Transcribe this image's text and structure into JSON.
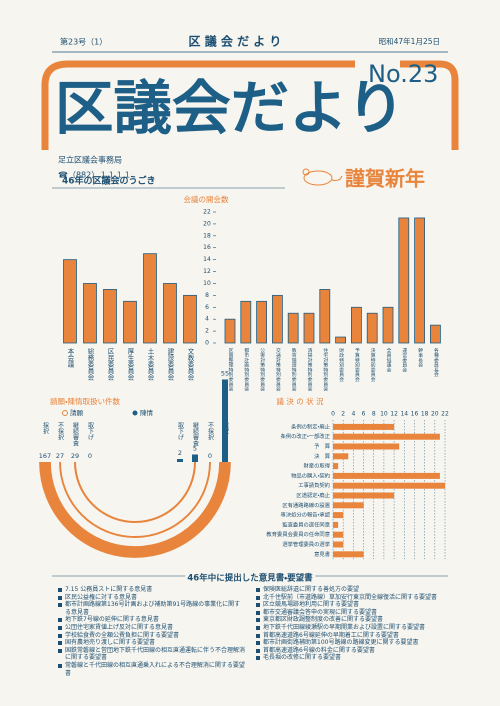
{
  "header": {
    "issue": "第23号（1）",
    "name": "区 議 会 だ よ り",
    "date": "昭和47年1月25日"
  },
  "masthead": {
    "title": "区議会だより",
    "number": "No.23",
    "publisher": "足立区議会事務局",
    "phone": "☎（882）１１１１",
    "greeting": "謹賀新年"
  },
  "section_title": "46年の区議会のうごき",
  "chart_data": [
    {
      "type": "bar",
      "title": "会議の開会数",
      "categories": [
        "本会議",
        "総務委員会",
        "区民委員会",
        "厚生委員会",
        "土木委員会",
        "建設委員会",
        "文教委員会",
        "区画整理特別委員会",
        "都市計画特別委員会",
        "公害対策特別委員会",
        "交通対策特別委員会",
        "教育施設特別委員会",
        "清掃対策特別委員会",
        "住宅対策特別委員会",
        "財政特別委員会",
        "予算特別委員会",
        "決算特別委員会",
        "全員協議会",
        "運営委員会",
        "幹事長会",
        "各種委員長会"
      ],
      "values": [
        14,
        10,
        9,
        7,
        15,
        10,
        8,
        4,
        7,
        7,
        8,
        5,
        5,
        9,
        1,
        6,
        5,
        6,
        21,
        21,
        3
      ],
      "color": "#e8843c",
      "ylim": [
        0,
        22
      ],
      "yticks": [
        0,
        2,
        4,
        6,
        8,
        10,
        12,
        14,
        16,
        18,
        20,
        22
      ],
      "grid": false
    },
    {
      "type": "arc",
      "title": "請願・陳情取扱い件数",
      "categories": [
        "採択",
        "不採択",
        "継続審査",
        "取下げ"
      ],
      "series": [
        {
          "name": "請願",
          "color": "#e8843c",
          "values": [
            167,
            27,
            29,
            0
          ]
        },
        {
          "name": "陳情",
          "color": "#1d5f86",
          "values": [
            55,
            0,
            5,
            2
          ]
        }
      ]
    },
    {
      "type": "barh",
      "title": "議 決 の 状 況",
      "categories": [
        "条例の制定・廃止",
        "条例の改正・一部改正",
        "予　算",
        "決　算",
        "財産の取得",
        "物品の購入・契約",
        "工事請負契約",
        "区道認定・廃止",
        "区有通路路線の設置",
        "専決処分の報告・承認",
        "監査委員の選任同意",
        "教育委員会委員の任命同意",
        "選挙管理委員の選挙",
        "意見書"
      ],
      "values": [
        12,
        21,
        13,
        3,
        1,
        21,
        22,
        12,
        6,
        2,
        1,
        2,
        2,
        6
      ],
      "color": "#e8843c",
      "xlim": [
        0,
        22
      ],
      "xticks": [
        0,
        2,
        4,
        6,
        8,
        10,
        12,
        14,
        16,
        18,
        20,
        22
      ],
      "grid": true
    }
  ],
  "opinions": {
    "title": "46年中に提出した意見書・要望書",
    "left": [
      "7.15 公務員ストに関する意見書",
      "区民公益権に対する意見書",
      "都市計画路線第136号計画および補助第91号路線の事業化に関する意見書",
      "地下鉄7号線の延伸に関する意見書",
      "公団住宅家賃値上げ反対に関する意見書",
      "学校給食費の全額公費負担に関する要望書",
      "国有農地売り渡しに関する要望書",
      "国鉄常磐線と営団地下鉄千代田線の相互直通運転に伴う不合理解消に関する要望書",
      "常磐線と千代田線の相互直通乗入れによる不合理解消に関する要望書"
    ],
    "right": [
      "保険医総辞退に関する善処方の要望",
      "北千住駅前（市道路線）草加安行東京間全線復活に関する要望書",
      "区立競馬場跡地利用に関する要望書",
      "都市交通審議会答申の実現に関する要望書",
      "東京都区財政調整制度の改善に関する要望書",
      "地下鉄千代田線綾瀬駅の早期開業および設置に関する要望書",
      "首都高速道路6号線延伸の早期着工に関する要望書",
      "都市計画街路補助第100号路線の路線変更に関する要望書",
      "首都高速道路6号線の料金に関する要望書",
      "毛長堀の改修に関する要望書"
    ]
  }
}
